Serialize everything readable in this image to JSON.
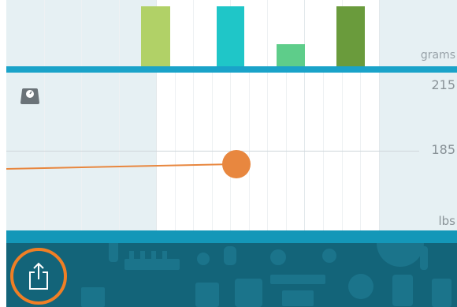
{
  "nutrient_chart": {
    "unit": "grams",
    "bars": [
      {
        "color": "#b1d167"
      },
      {
        "color": "#1fc6c8"
      },
      {
        "color": "#5ecd8a"
      },
      {
        "color": "#6a9b3c"
      }
    ]
  },
  "weight_chart": {
    "unit": "lbs",
    "top_value": "215",
    "mid_value": "185",
    "line_color": "#e8873f",
    "point_color": "#e8873f"
  },
  "toolbar": {
    "share_icon": "share-icon",
    "highlight_color": "#f07f25"
  },
  "colors": {
    "divider": "#1aa3c9",
    "toolbar": "#136479",
    "shade": "#e6f0f3"
  }
}
